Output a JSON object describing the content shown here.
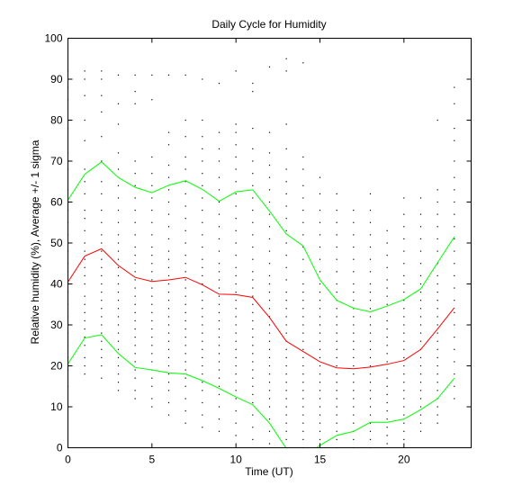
{
  "chart_data": {
    "type": "line",
    "title": "Daily Cycle for Humidity",
    "xlabel": "Time (UT)",
    "ylabel": "Relative humidity (%), Average +/- 1 sigma",
    "xlim": [
      0,
      24
    ],
    "ylim": [
      0,
      100
    ],
    "xticks": [
      0,
      5,
      10,
      15,
      20
    ],
    "yticks": [
      0,
      10,
      20,
      30,
      40,
      50,
      60,
      70,
      80,
      90,
      100
    ],
    "grid": false,
    "x": [
      0,
      1,
      2,
      3,
      4,
      5,
      6,
      7,
      8,
      9,
      10,
      11,
      12,
      13,
      14,
      15,
      16,
      17,
      18,
      19,
      20,
      21,
      22,
      23
    ],
    "series": [
      {
        "role": "mean",
        "color": "#ff0000",
        "values": [
          40.5,
          46.8,
          48.6,
          44.5,
          41.6,
          40.6,
          41.0,
          41.6,
          39.8,
          37.5,
          37.4,
          36.7,
          31.8,
          26.0,
          23.5,
          21.0,
          19.5,
          19.3,
          19.7,
          20.4,
          21.3,
          24.0,
          29.0,
          34.2
        ]
      },
      {
        "role": "mean+1sigma",
        "color": "#00ff00",
        "values": [
          60.5,
          66.8,
          69.8,
          66.0,
          63.6,
          62.3,
          64.1,
          65.2,
          63.1,
          60.2,
          62.5,
          63.0,
          57.8,
          52.2,
          49.3,
          41.0,
          36.0,
          34.1,
          33.2,
          34.6,
          36.2,
          38.8,
          45.2,
          51.5
        ]
      },
      {
        "role": "mean-1sigma",
        "color": "#00ff00",
        "values": [
          20.5,
          26.8,
          27.6,
          23.0,
          19.6,
          19.0,
          18.3,
          18.0,
          16.4,
          14.5,
          12.4,
          10.5,
          6.0,
          -0.2,
          -2.3,
          0.6,
          3.0,
          4.0,
          6.2,
          6.2,
          7.0,
          9.3,
          12.0,
          17.0
        ]
      }
    ],
    "observations": {
      "color": "#000000",
      "columns": [
        {
          "x": 0,
          "y": [
            15,
            19,
            22,
            25,
            28,
            30,
            32,
            35,
            38,
            40,
            43,
            45,
            48,
            52,
            55,
            58,
            63,
            68,
            72,
            78,
            85,
            88,
            92
          ]
        },
        {
          "x": 1,
          "y": [
            18,
            20,
            22,
            25,
            27,
            29,
            31,
            33,
            35,
            37,
            40,
            42,
            44,
            46,
            48,
            50,
            53,
            56,
            58,
            62,
            65,
            68,
            75,
            80,
            86,
            90,
            92
          ]
        },
        {
          "x": 2,
          "y": [
            17,
            20,
            22,
            24,
            26,
            28,
            30,
            32,
            34,
            36,
            38,
            40,
            42,
            44,
            46,
            48,
            50,
            52,
            55,
            58,
            62,
            65,
            70,
            76,
            82,
            86,
            90,
            92
          ]
        },
        {
          "x": 3,
          "y": [
            14,
            16,
            18,
            20,
            22,
            24,
            26,
            28,
            30,
            32,
            34,
            36,
            38,
            40,
            42,
            44,
            46,
            48,
            50,
            52,
            55,
            58,
            61,
            64,
            68,
            72,
            79,
            84,
            91
          ]
        },
        {
          "x": 4,
          "y": [
            12,
            14,
            17,
            19,
            21,
            23,
            25,
            27,
            29,
            31,
            33,
            35,
            37,
            39,
            41,
            43,
            45,
            47,
            49,
            52,
            55,
            58,
            61,
            64,
            67,
            70,
            84,
            87,
            91
          ]
        },
        {
          "x": 5,
          "y": [
            10,
            12,
            15,
            17,
            19,
            21,
            23,
            25,
            27,
            29,
            31,
            33,
            35,
            37,
            39,
            41,
            43,
            45,
            47,
            49,
            52,
            55,
            58,
            61,
            64,
            67,
            71,
            85,
            91
          ]
        },
        {
          "x": 6,
          "y": [
            8,
            11,
            14,
            16,
            18,
            20,
            22,
            24,
            26,
            28,
            30,
            32,
            34,
            36,
            38,
            40,
            42,
            44,
            46,
            48,
            51,
            54,
            57,
            60,
            63,
            66,
            69,
            74,
            77,
            91
          ]
        },
        {
          "x": 7,
          "y": [
            6,
            9,
            12,
            15,
            17,
            19,
            21,
            23,
            25,
            27,
            29,
            31,
            33,
            35,
            37,
            39,
            41,
            43,
            45,
            47,
            50,
            53,
            56,
            59,
            62,
            65,
            68,
            71,
            76,
            80,
            91
          ]
        },
        {
          "x": 8,
          "y": [
            5,
            8,
            11,
            14,
            16,
            18,
            20,
            22,
            24,
            26,
            28,
            30,
            32,
            34,
            36,
            38,
            40,
            42,
            44,
            46,
            49,
            52,
            55,
            58,
            61,
            64,
            67,
            70,
            73,
            76,
            80,
            90
          ]
        },
        {
          "x": 9,
          "y": [
            4,
            7,
            10,
            13,
            15,
            17,
            19,
            21,
            23,
            25,
            27,
            29,
            31,
            33,
            35,
            37,
            39,
            41,
            43,
            45,
            48,
            51,
            54,
            57,
            60,
            63,
            66,
            70,
            73,
            77,
            89
          ]
        },
        {
          "x": 10,
          "y": [
            3,
            6,
            9,
            12,
            14,
            16,
            18,
            20,
            22,
            24,
            26,
            28,
            30,
            32,
            34,
            36,
            38,
            40,
            42,
            44,
            47,
            50,
            53,
            56,
            59,
            62,
            65,
            68,
            71,
            74,
            77,
            79,
            92
          ]
        },
        {
          "x": 11,
          "y": [
            2,
            5,
            8,
            11,
            13,
            15,
            17,
            19,
            21,
            23,
            25,
            27,
            29,
            31,
            33,
            35,
            37,
            39,
            41,
            43,
            46,
            49,
            52,
            55,
            58,
            61,
            64,
            67,
            70,
            73,
            78,
            87,
            89
          ]
        },
        {
          "x": 12,
          "y": [
            1,
            4,
            7,
            10,
            12,
            14,
            16,
            18,
            20,
            22,
            24,
            26,
            28,
            30,
            32,
            34,
            36,
            38,
            40,
            42,
            45,
            48,
            51,
            54,
            57,
            60,
            63,
            66,
            69,
            72,
            77,
            93
          ]
        },
        {
          "x": 13,
          "y": [
            0,
            2,
            4,
            6,
            8,
            10,
            12,
            14,
            16,
            18,
            20,
            22,
            24,
            26,
            28,
            30,
            32,
            34,
            36,
            38,
            41,
            44,
            47,
            50,
            53,
            56,
            59,
            62,
            65,
            68,
            73,
            79,
            92,
            95
          ]
        },
        {
          "x": 14,
          "y": [
            0,
            2,
            4,
            6,
            8,
            10,
            12,
            14,
            16,
            18,
            20,
            22,
            24,
            26,
            28,
            30,
            32,
            34,
            36,
            38,
            40,
            43,
            46,
            49,
            52,
            55,
            58,
            61,
            64,
            68,
            71,
            94
          ]
        },
        {
          "x": 15,
          "y": [
            0,
            2,
            4,
            6,
            8,
            10,
            12,
            14,
            16,
            18,
            20,
            22,
            24,
            26,
            28,
            30,
            32,
            34,
            36,
            38,
            40,
            43,
            46,
            49,
            52,
            55,
            58,
            62,
            66
          ]
        },
        {
          "x": 16,
          "y": [
            0,
            2,
            4,
            6,
            8,
            10,
            12,
            14,
            16,
            18,
            20,
            22,
            24,
            26,
            28,
            30,
            32,
            34,
            36,
            38,
            40,
            43,
            46,
            49,
            52,
            55,
            58,
            62
          ]
        },
        {
          "x": 17,
          "y": [
            0,
            2,
            4,
            6,
            8,
            10,
            12,
            14,
            16,
            18,
            20,
            22,
            24,
            26,
            28,
            30,
            32,
            34,
            36,
            38,
            40,
            43,
            46,
            49,
            52,
            55,
            58
          ]
        },
        {
          "x": 18,
          "y": [
            0,
            2,
            4,
            6,
            8,
            10,
            12,
            14,
            16,
            18,
            20,
            22,
            24,
            26,
            28,
            30,
            32,
            34,
            36,
            38,
            40,
            43,
            46,
            49,
            52,
            55,
            58,
            62
          ]
        },
        {
          "x": 19,
          "y": [
            1,
            3,
            5,
            7,
            9,
            11,
            13,
            15,
            17,
            19,
            21,
            23,
            25,
            27,
            29,
            31,
            33,
            35,
            37,
            39,
            41,
            44,
            47,
            50,
            53
          ]
        },
        {
          "x": 20,
          "y": [
            2,
            4,
            6,
            8,
            10,
            12,
            14,
            16,
            18,
            20,
            22,
            24,
            26,
            28,
            30,
            32,
            34,
            36,
            38,
            40,
            42,
            45,
            48,
            51,
            54,
            57,
            61
          ]
        },
        {
          "x": 21,
          "y": [
            4,
            6,
            8,
            10,
            12,
            14,
            16,
            18,
            20,
            22,
            24,
            26,
            28,
            30,
            32,
            34,
            36,
            38,
            40,
            42,
            45,
            48,
            51,
            54,
            57,
            61
          ]
        },
        {
          "x": 22,
          "y": [
            6,
            8,
            10,
            12,
            14,
            16,
            18,
            20,
            22,
            24,
            26,
            28,
            30,
            32,
            34,
            36,
            38,
            40,
            42,
            45,
            48,
            51,
            54,
            57,
            60,
            63,
            80
          ]
        },
        {
          "x": 23,
          "y": [
            12,
            15,
            18,
            21,
            24,
            27,
            30,
            33,
            36,
            39,
            42,
            45,
            48,
            51,
            54,
            57,
            60,
            63,
            66,
            70,
            75,
            78,
            84,
            88
          ]
        }
      ]
    }
  }
}
